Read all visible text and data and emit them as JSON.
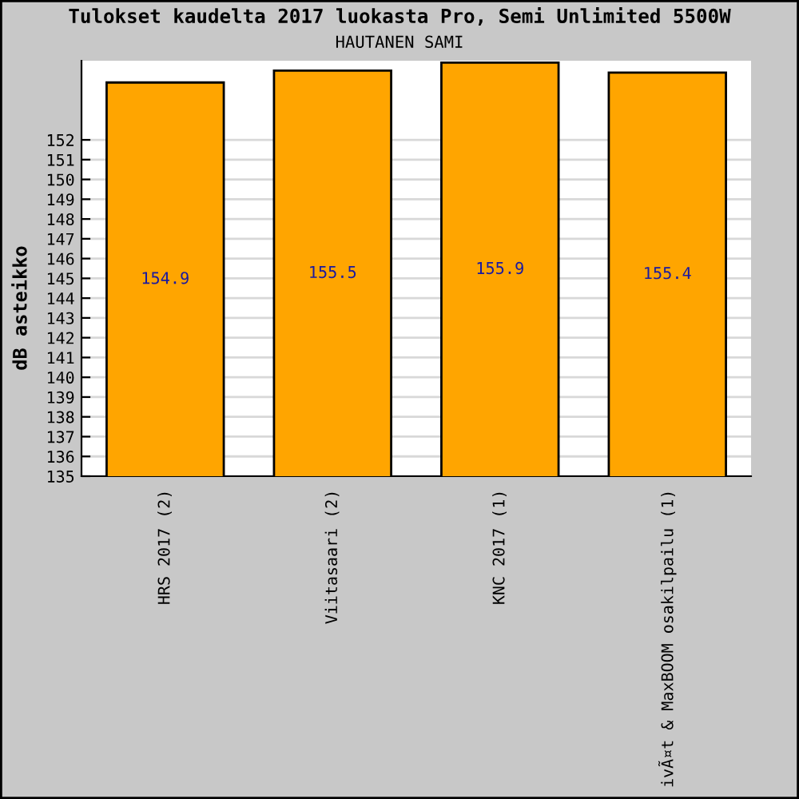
{
  "chart_data": {
    "type": "bar",
    "title": "Tulokset kaudelta 2017 luokasta Pro, Semi Unlimited 5500W",
    "subtitle": "HAUTANEN SAMI",
    "ylabel": "dB asteikko",
    "categories": [
      "HRS 2017 (2)",
      "Viitasaari (2)",
      "KNC 2017 (1)",
      "ivÃ¤t & MaxBOOM osakilpailu (1)"
    ],
    "values": [
      154.9,
      155.5,
      155.9,
      155.4
    ],
    "color": "#ffa500",
    "data_labels": true,
    "ylim": [
      135,
      156
    ],
    "yticks": [
      135,
      136,
      137,
      138,
      139,
      140,
      141,
      142,
      143,
      144,
      145,
      146,
      147,
      148,
      149,
      150,
      151,
      152
    ],
    "grid": "y"
  }
}
